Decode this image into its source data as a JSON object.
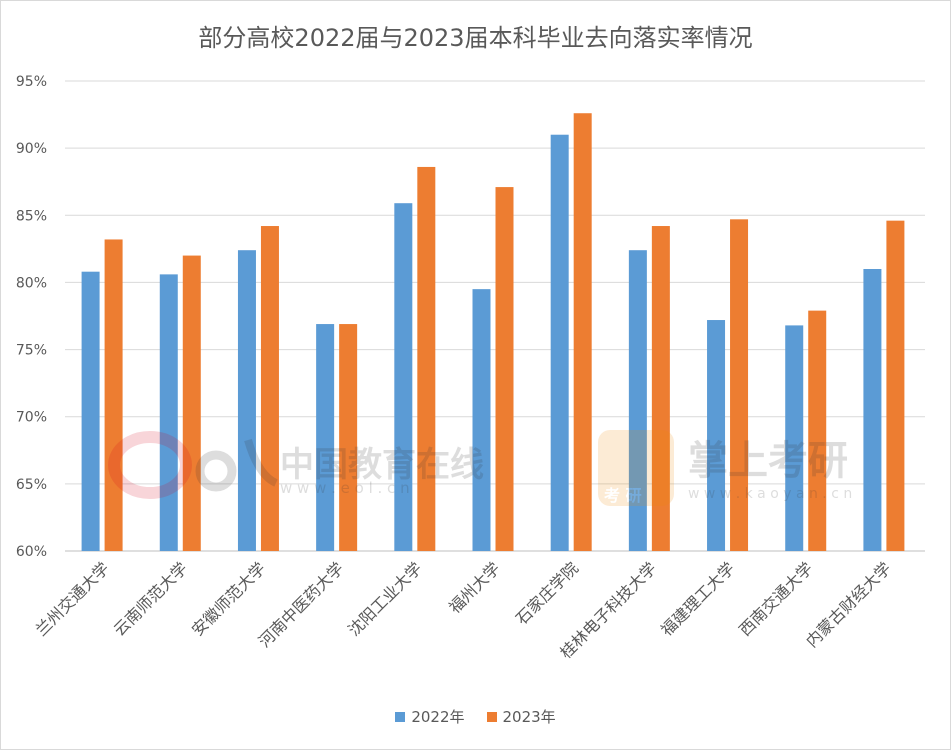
{
  "chart_data": {
    "type": "bar",
    "title": "部分高校2022届与2023届本科毕业去向落实率情况",
    "categories": [
      "兰州交通大学",
      "云南师范大学",
      "安徽师范大学",
      "河南中医药大学",
      "沈阳工业大学",
      "福州大学",
      "石家庄学院",
      "桂林电子科技大学",
      "福建理工大学",
      "西南交通大学",
      "内蒙古财经大学"
    ],
    "series": [
      {
        "name": "2022年",
        "color": "#5b9bd5",
        "values": [
          80.8,
          80.6,
          82.4,
          76.9,
          85.9,
          79.5,
          91.0,
          82.4,
          77.2,
          76.8,
          81.0
        ]
      },
      {
        "name": "2023年",
        "color": "#ed7d31",
        "values": [
          83.2,
          82.0,
          84.2,
          76.9,
          88.6,
          87.1,
          92.6,
          84.2,
          84.7,
          77.9,
          84.6
        ]
      }
    ],
    "ylim": [
      60,
      95
    ],
    "yticks": [
      "60%",
      "65%",
      "70%",
      "75%",
      "80%",
      "85%",
      "90%",
      "95%"
    ],
    "grid": true,
    "legend_position": "bottom"
  },
  "watermarks": {
    "eol_name": "中国教育在线",
    "eol_url": "w w w . e o l . c n",
    "kaoyan_name": "掌上考研",
    "kaoyan_badge": "考 研",
    "kaoyan_url": "w w w . k a o y a n . c n"
  }
}
